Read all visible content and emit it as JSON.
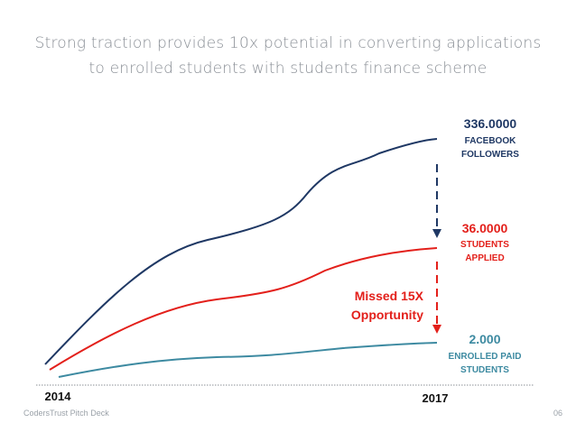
{
  "slide": {
    "title_line1": "Strong traction provides 10x potential in converting applications",
    "title_line2": "to enrolled students with students finance scheme",
    "footer_left": "CodersTrust Pitch Deck",
    "footer_right": "06"
  },
  "chart_data": {
    "type": "line",
    "x": [
      "2014",
      "2017"
    ],
    "x_tick_labels": [
      "2014",
      "2017"
    ],
    "series": [
      {
        "key": "facebook",
        "value_label": "336.0000",
        "label_lines": [
          "FACEBOOK",
          "FOLLOWERS"
        ],
        "color": "#1f3864",
        "start_value": 15,
        "end_value": 336
      },
      {
        "key": "applied",
        "value_label": "36.0000",
        "label_lines": [
          "STUDENTS",
          "APPLIED"
        ],
        "color": "#e3201b",
        "start_value": 12,
        "end_value": 36
      },
      {
        "key": "enrolled",
        "value_label": "2.000",
        "label_lines": [
          "ENROLLED PAID",
          "STUDENTS"
        ],
        "color": "#3d8aa1",
        "start_value": 0.5,
        "end_value": 2
      }
    ],
    "annotation": {
      "lines": [
        "Missed 15X",
        "Opportunity"
      ],
      "color": "#e3201b"
    },
    "grid": false
  }
}
